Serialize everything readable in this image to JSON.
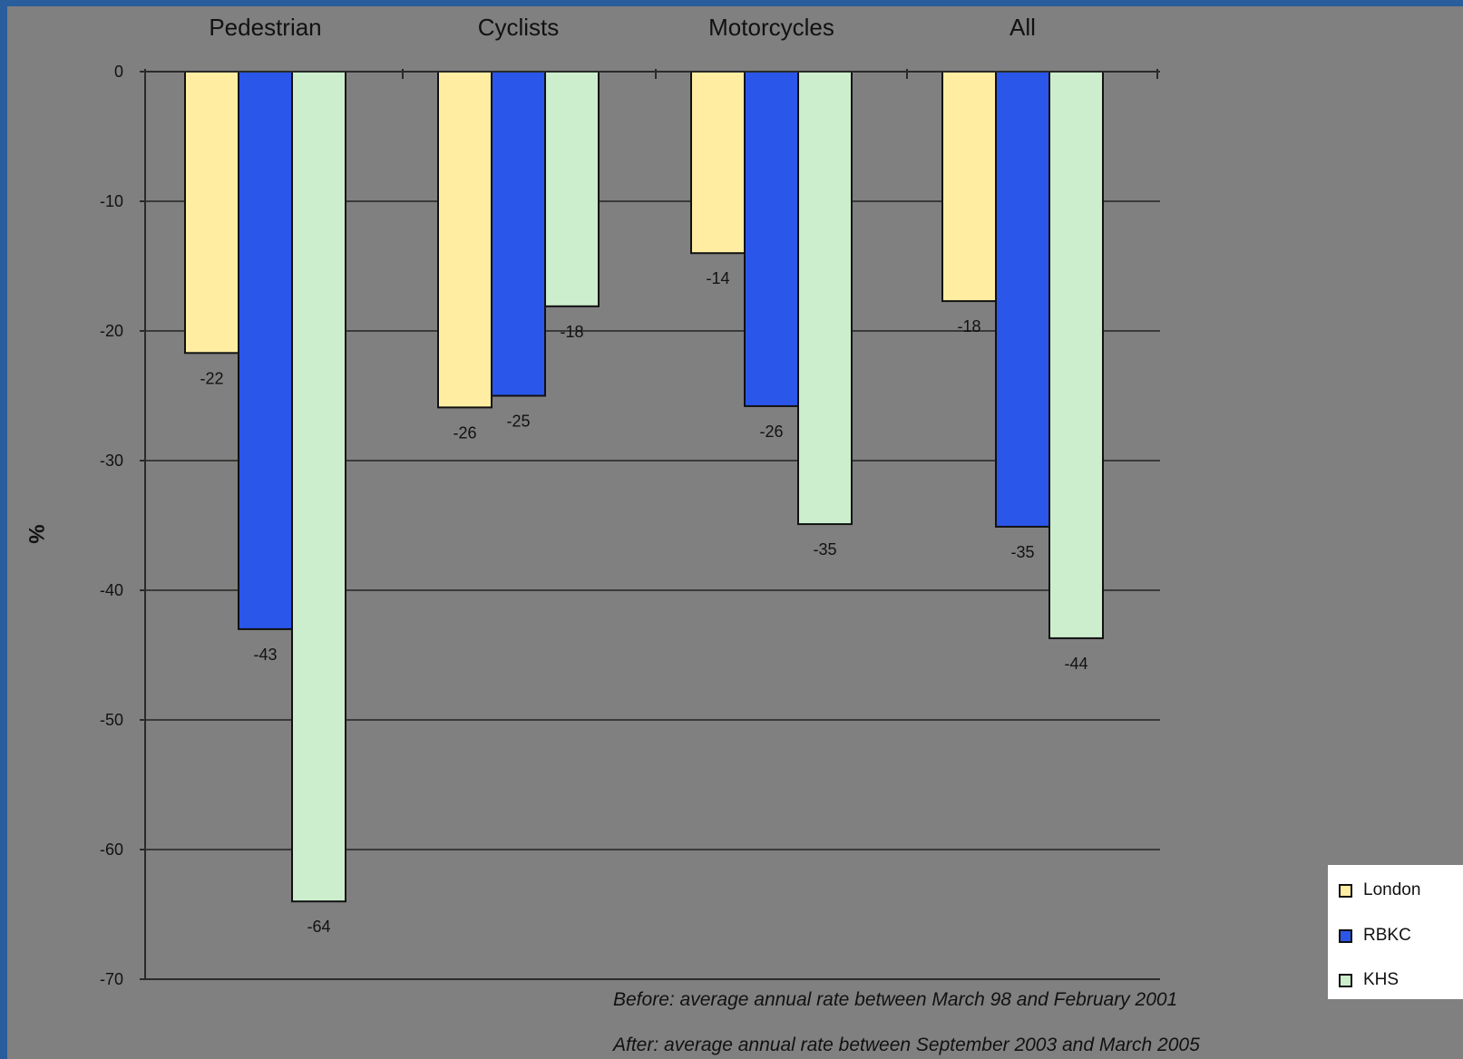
{
  "chart_data": {
    "type": "bar",
    "categories": [
      "Pedestrian",
      "Cyclists",
      "Motorcycles",
      "All"
    ],
    "series": [
      {
        "name": "London",
        "color": "#ffeea2",
        "values": [
          -22,
          -26,
          -14,
          -18
        ]
      },
      {
        "name": "RBKC",
        "color": "#2a56ea",
        "values": [
          -43,
          -25,
          -26,
          -35
        ]
      },
      {
        "name": "KHS",
        "color": "#cceecd",
        "values": [
          -64,
          -18,
          -35,
          -44
        ]
      }
    ],
    "bar_values": [
      [
        -21.7,
        -25.9,
        -14,
        -17.7
      ],
      [
        -43,
        -25,
        -25.8,
        -35.1
      ],
      [
        -64,
        -18.1,
        -34.9,
        -43.7
      ]
    ],
    "ylabel": "%",
    "ylim": [
      -70,
      0
    ],
    "yticks": [
      0,
      -10,
      -20,
      -30,
      -40,
      -50,
      -60,
      -70
    ],
    "grid": true,
    "legend_position": "bottom-right",
    "notes": [
      "Before: average annual rate between March 98 and February 2001",
      "After: average annual rate between September 2003 and March 2005"
    ]
  }
}
